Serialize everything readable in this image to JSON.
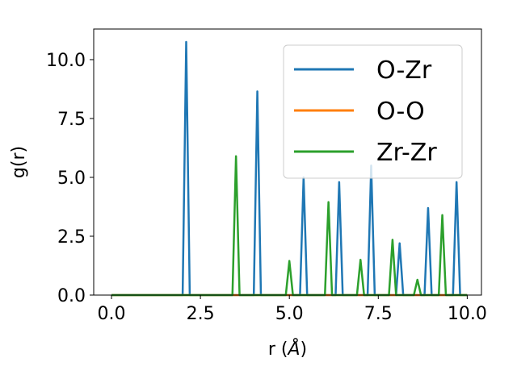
{
  "chart_data": {
    "type": "line",
    "xlabel": "r (",
    "xlabel_unit": "Å",
    "xlabel_close": ")",
    "ylabel": "g(r)",
    "xlim": [
      -0.5,
      10.4
    ],
    "ylim": [
      0,
      11.3
    ],
    "xticks": [
      0.0,
      2.5,
      5.0,
      7.5,
      10.0
    ],
    "xtick_labels": [
      "0.0",
      "2.5",
      "5.0",
      "7.5",
      "10.0"
    ],
    "yticks": [
      0.0,
      2.5,
      5.0,
      7.5,
      10.0
    ],
    "ytick_labels": [
      "0.0",
      "2.5",
      "5.0",
      "7.5",
      "10.0"
    ],
    "grid": false,
    "legend_position": "top-right",
    "series": [
      {
        "name": "O-Zr",
        "color": "#1f77b4",
        "x": [
          0.0,
          2.0,
          2.1,
          2.2,
          4.0,
          4.1,
          4.2,
          5.3,
          5.4,
          5.5,
          6.3,
          6.4,
          6.5,
          7.2,
          7.3,
          7.4,
          8.0,
          8.1,
          8.2,
          8.8,
          8.9,
          9.0,
          9.6,
          9.7,
          9.8,
          10.0
        ],
        "y": [
          0.0,
          0.0,
          10.75,
          0.0,
          0.0,
          8.65,
          0.0,
          0.0,
          5.0,
          0.0,
          0.0,
          4.8,
          0.0,
          0.0,
          5.5,
          0.0,
          0.0,
          2.2,
          0.0,
          0.0,
          3.7,
          0.0,
          0.0,
          4.8,
          0.0,
          0.0
        ]
      },
      {
        "name": "O-O",
        "color": "#ff7f0e",
        "x": [
          0.0,
          10.0
        ],
        "y": [
          0.0,
          0.0
        ]
      },
      {
        "name": "Zr-Zr",
        "color": "#2ca02c",
        "x": [
          0.0,
          3.4,
          3.5,
          3.6,
          4.9,
          5.0,
          5.1,
          6.0,
          6.1,
          6.2,
          6.9,
          7.0,
          7.1,
          7.8,
          7.9,
          8.0,
          8.5,
          8.6,
          8.7,
          9.2,
          9.3,
          9.4,
          10.0
        ],
        "y": [
          0.0,
          0.0,
          5.9,
          0.0,
          0.0,
          1.45,
          0.0,
          0.0,
          3.95,
          0.0,
          0.0,
          1.5,
          0.0,
          0.0,
          2.35,
          0.0,
          0.0,
          0.65,
          0.0,
          0.0,
          3.4,
          0.0,
          0.0
        ]
      }
    ]
  }
}
